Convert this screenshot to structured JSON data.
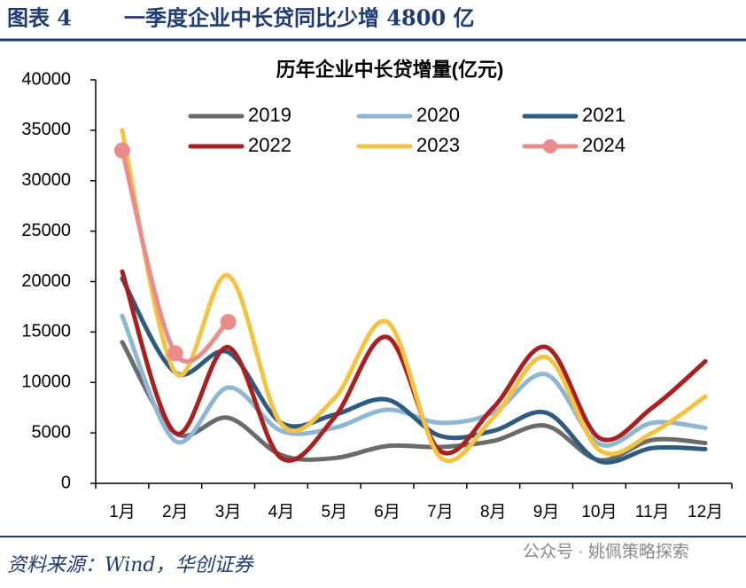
{
  "figure_label": "图表 4",
  "chart_data": {
    "type": "line",
    "title": "一季度企业中长贷同比少增 4800 亿",
    "subtitle": "历年企业中长贷增量(亿元)",
    "categories": [
      "1月",
      "2月",
      "3月",
      "4月",
      "5月",
      "6月",
      "7月",
      "8月",
      "9月",
      "10月",
      "11月",
      "12月"
    ],
    "series": [
      {
        "name": "2019",
        "color": "#6b6b6b",
        "values": [
          14000,
          5000,
          6500,
          2800,
          2500,
          3700,
          3600,
          4200,
          5700,
          2300,
          4300,
          4000
        ]
      },
      {
        "name": "2020",
        "color": "#8fb6d2",
        "values": [
          16600,
          4200,
          9500,
          5200,
          5500,
          7300,
          6000,
          7000,
          10800,
          3900,
          6000,
          5500
        ]
      },
      {
        "name": "2021",
        "color": "#2e5b82",
        "values": [
          20300,
          11000,
          13000,
          6000,
          6800,
          8300,
          4700,
          5200,
          7000,
          2200,
          3500,
          3400
        ]
      },
      {
        "name": "2022",
        "color": "#a8201f",
        "values": [
          21000,
          5000,
          13500,
          2500,
          6500,
          14500,
          3200,
          7500,
          13500,
          4500,
          7500,
          12100
        ]
      },
      {
        "name": "2023",
        "color": "#f5c342",
        "values": [
          35000,
          11000,
          20600,
          5900,
          8400,
          16000,
          2600,
          6500,
          12500,
          3300,
          5000,
          8600
        ]
      },
      {
        "name": "2024",
        "color": "#ea8c8c",
        "values": [
          33000,
          12900,
          16000,
          null,
          null,
          null,
          null,
          null,
          null,
          null,
          null,
          null
        ],
        "markers": true
      }
    ],
    "ylim": [
      0,
      40000
    ],
    "yticks": [
      0,
      5000,
      10000,
      15000,
      20000,
      25000,
      30000,
      35000,
      40000
    ]
  },
  "source": "资料来源：Wind，华创证券",
  "watermark": "公众号 · 姚佩策略探索"
}
